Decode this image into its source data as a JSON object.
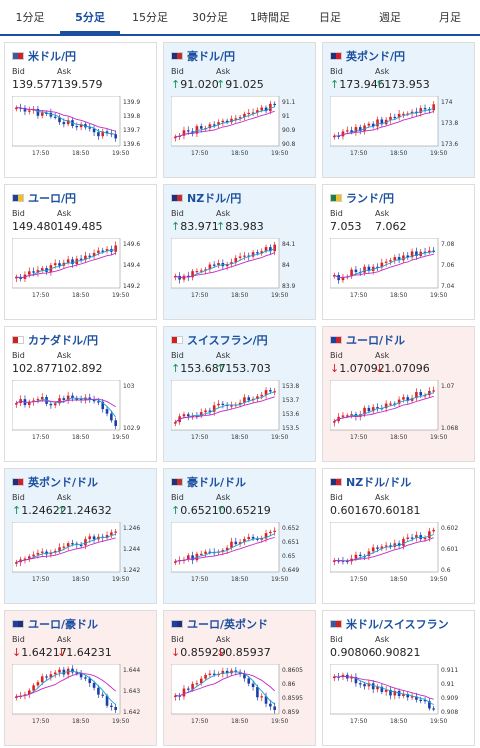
{
  "tabs": [
    {
      "label": "1分足"
    },
    {
      "label": "5分足"
    },
    {
      "label": "15分足"
    },
    {
      "label": "30分足"
    },
    {
      "label": "1時間足"
    },
    {
      "label": "日足"
    },
    {
      "label": "週足"
    },
    {
      "label": "月足"
    }
  ],
  "active_tab": "5分足",
  "common": {
    "bid_label": "Bid",
    "ask_label": "Ask",
    "x_ticks": [
      "17:50",
      "18:50",
      "19:50"
    ]
  },
  "colors": {
    "up": "#e02020",
    "down": "#1b3fa8",
    "ma_fast": "#16a3d8",
    "ma_slow": "#c62ac6"
  },
  "cards": [
    {
      "title": "米ドル/円",
      "bid": "139.577",
      "ask": "139.579",
      "arrow": "",
      "bg": "white",
      "flag": [
        "#3c5aa0",
        "#d02030"
      ],
      "yticks": [
        "139.9",
        "139.8",
        "139.7",
        "139.6"
      ],
      "trend": "down"
    },
    {
      "title": "豪ドル/円",
      "bid": "↑91.020",
      "ask": "↑91.025",
      "arrow": "up",
      "bg": "blue",
      "flag": [
        "#203080",
        "#c03030"
      ],
      "yticks": [
        "91.1",
        "91",
        "90.9",
        "90.8"
      ],
      "trend": "up"
    },
    {
      "title": "英ポンド/円",
      "bid": "↑173.946",
      "ask": "↑173.953",
      "arrow": "up",
      "bg": "blue",
      "flag": [
        "#203080",
        "#d02030"
      ],
      "yticks": [
        "174",
        "173.8",
        "173.6"
      ],
      "trend": "up"
    },
    {
      "title": "ユーロ/円",
      "bid": "149.480",
      "ask": "149.485",
      "arrow": "",
      "bg": "white",
      "flag": [
        "#2040a0",
        "#f0c020"
      ],
      "yticks": [
        "149.6",
        "149.4",
        "149.2"
      ],
      "trend": "up"
    },
    {
      "title": "NZドル/円",
      "bid": "↑83.971",
      "ask": "↑83.983",
      "arrow": "up",
      "bg": "blue",
      "flag": [
        "#203080",
        "#c03030"
      ],
      "yticks": [
        "84.1",
        "84",
        "83.9"
      ],
      "trend": "up"
    },
    {
      "title": "ランド/円",
      "bid": "7.053",
      "ask": "7.062",
      "arrow": "",
      "bg": "white",
      "flag": [
        "#208040",
        "#f0c020"
      ],
      "yticks": [
        "7.08",
        "7.06",
        "7.04"
      ],
      "trend": "up"
    },
    {
      "title": "カナダドル/円",
      "bid": "102.877",
      "ask": "102.892",
      "arrow": "",
      "bg": "white",
      "flag": [
        "#d02020",
        "#ffffff"
      ],
      "yticks": [
        "103",
        "102.9"
      ],
      "trend": "flatdown"
    },
    {
      "title": "スイスフラン/円",
      "bid": "↑153.687",
      "ask": "↑153.703",
      "arrow": "up",
      "bg": "blue",
      "flag": [
        "#d02020",
        "#ffffff"
      ],
      "yticks": [
        "153.8",
        "153.7",
        "153.6",
        "153.5"
      ],
      "trend": "up"
    },
    {
      "title": "ユーロ/ドル",
      "bid": "↓1.07092",
      "ask": "↓1.07096",
      "arrow": "down",
      "bg": "pink",
      "flag": [
        "#2040a0",
        "#d02030"
      ],
      "yticks": [
        "1.07",
        "1.068"
      ],
      "trend": "up"
    },
    {
      "title": "英ポンド/ドル",
      "bid": "↑1.24622",
      "ask": "↑1.24632",
      "arrow": "up",
      "bg": "blue",
      "flag": [
        "#203080",
        "#d02030"
      ],
      "yticks": [
        "1.246",
        "1.244",
        "1.242"
      ],
      "trend": "up"
    },
    {
      "title": "豪ドル/ドル",
      "bid": "↑0.65210",
      "ask": "↑0.65219",
      "arrow": "up",
      "bg": "blue",
      "flag": [
        "#203080",
        "#c03030"
      ],
      "yticks": [
        "0.652",
        "0.651",
        "0.65",
        "0.649"
      ],
      "trend": "up"
    },
    {
      "title": "NZドル/ドル",
      "bid": "0.60167",
      "ask": "0.60181",
      "arrow": "",
      "bg": "white",
      "flag": [
        "#203080",
        "#d02030"
      ],
      "yticks": [
        "0.602",
        "0.601",
        "0.6"
      ],
      "trend": "up"
    },
    {
      "title": "ユーロ/豪ドル",
      "bid": "↓1.64217",
      "ask": "↓1.64231",
      "arrow": "down",
      "bg": "pink",
      "flag": [
        "#2040a0",
        "#203080"
      ],
      "yticks": [
        "1.644",
        "1.643",
        "1.642"
      ],
      "trend": "humpdown"
    },
    {
      "title": "ユーロ/英ポンド",
      "bid": "↓0.85929",
      "ask": "↓0.85937",
      "arrow": "down",
      "bg": "pink",
      "flag": [
        "#2040a0",
        "#203080"
      ],
      "yticks": [
        "0.8605",
        "0.86",
        "0.8595",
        "0.859"
      ],
      "trend": "humpdown"
    },
    {
      "title": "米ドル/スイスフラン",
      "bid": "0.90806",
      "ask": "0.90821",
      "arrow": "",
      "bg": "white",
      "flag": [
        "#3c5aa0",
        "#d02020"
      ],
      "yticks": [
        "0.911",
        "0.91",
        "0.909",
        "0.908"
      ],
      "trend": "down"
    }
  ]
}
